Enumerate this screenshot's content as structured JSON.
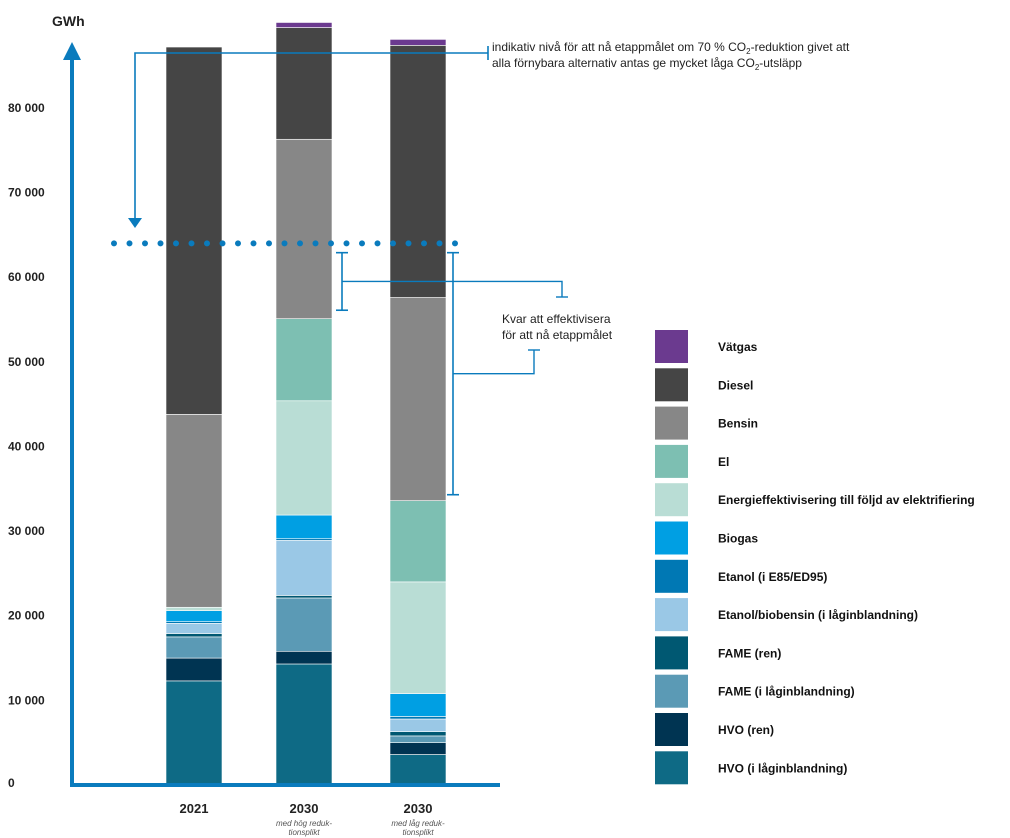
{
  "chart_data": {
    "type": "bar",
    "stacked": true,
    "ylabel": "GWh",
    "ylim": [
      0,
      88000
    ],
    "yticks": [
      0,
      10000,
      20000,
      30000,
      40000,
      50000,
      60000,
      70000,
      80000
    ],
    "ytick_labels": [
      "0",
      "10 000",
      "20 000",
      "30 000",
      "40 000",
      "50 000",
      "60 000",
      "70 000",
      "80 000"
    ],
    "categories": [
      "2021",
      "2030",
      "2030"
    ],
    "category_sublabels": [
      [],
      [
        "med hög reduk-",
        "tionsplikt"
      ],
      [
        "med låg reduk-",
        "tionsplikt"
      ]
    ],
    "series": [
      {
        "name": "HVO (i låginblandning)",
        "color": "#0e6a85",
        "values": [
          12300,
          14300,
          3600
        ]
      },
      {
        "name": "HVO (ren)",
        "color": "#003452",
        "values": [
          2700,
          1500,
          1400
        ]
      },
      {
        "name": "FAME (i låginblandning)",
        "color": "#5b9ab5",
        "values": [
          2500,
          6300,
          800
        ]
      },
      {
        "name": "FAME (ren)",
        "color": "#005872",
        "values": [
          400,
          300,
          500
        ]
      },
      {
        "name": "Etanol/biobensin (i låginblandning)",
        "color": "#9ac8e6",
        "values": [
          1200,
          6500,
          1500
        ]
      },
      {
        "name": "Etanol (i E85/ED95)",
        "color": "#0078b4",
        "values": [
          200,
          200,
          300
        ]
      },
      {
        "name": "Biogas",
        "color": "#009fe3",
        "values": [
          1300,
          2800,
          2700
        ]
      },
      {
        "name": "Energieffektivisering till följd av elektrifiering",
        "color": "#b9ddd5",
        "values": [
          400,
          13500,
          13200
        ]
      },
      {
        "name": "El",
        "color": "#7dbfb2",
        "values": [
          0,
          9700,
          9600
        ]
      },
      {
        "name": "Bensin",
        "color": "#878787",
        "values": [
          22800,
          21200,
          24000
        ]
      },
      {
        "name": "Diesel",
        "color": "#454545",
        "values": [
          43400,
          13200,
          29800
        ]
      },
      {
        "name": "Vätgas",
        "color": "#6b3a8f",
        "values": [
          0,
          600,
          700
        ]
      }
    ],
    "legend_order": [
      "Vätgas",
      "Diesel",
      "Bensin",
      "El",
      "Energieffektivisering till följd av elektrifiering",
      "Biogas",
      "Etanol (i E85/ED95)",
      "Etanol/biobensin (i låginblandning)",
      "FAME (ren)",
      "FAME (i låginblandning)",
      "HVO (ren)",
      "HVO (i låginblandning)"
    ],
    "legend_placement": "right",
    "grid": false,
    "reference_line": {
      "value": 64000,
      "style": "dotted",
      "color": "#0a7bbd",
      "label_lines": [
        {
          "parts": [
            "indikativ nivå  för att nå etappmålet om 70 % CO",
            "2",
            "-reduktion givet att"
          ]
        },
        {
          "parts": [
            "alla förnybara alternativ antas ge mycket låga CO",
            "2",
            "-utsläpp"
          ]
        }
      ]
    },
    "gap_annotation": {
      "label_lines": [
        "Kvar att effektivisera",
        "för att nå etappmålet"
      ],
      "ranges": [
        {
          "category_index": 1,
          "from": 56100,
          "to": 62900
        },
        {
          "category_index": 2,
          "from": 34300,
          "to": 62900
        }
      ]
    }
  }
}
